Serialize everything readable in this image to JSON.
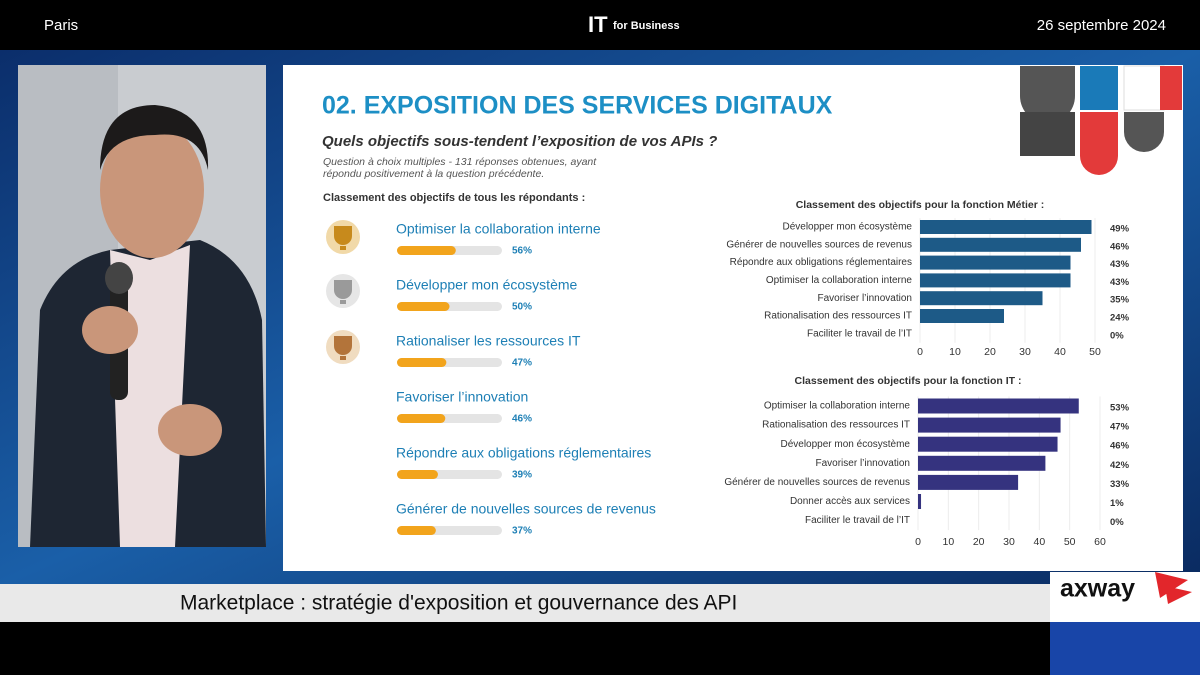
{
  "header": {
    "location": "Paris",
    "logo_main": "IT",
    "logo_sub": "for Business",
    "date": "26 septembre 2024"
  },
  "slide": {
    "title": "02. EXPOSITION DES SERVICES DIGITAUX",
    "question": "Quels objectifs sous-tendent l’exposition de vos APIs ?",
    "note_line1": "Question à choix multiples - 131 réponses obtenues, ayant",
    "note_line2": "répondu positivement à la question précédente."
  },
  "chart_data": [
    {
      "type": "progress",
      "title": "Classement des objectifs de tous les répondants :",
      "categories": [
        "Optimiser la collaboration interne",
        "Développer mon écosystème",
        "Rationaliser les ressources IT",
        "Favoriser l’innovation",
        "Répondre aux obligations réglementaires",
        "Générer de nouvelles sources de revenus"
      ],
      "values": [
        56,
        50,
        47,
        46,
        39,
        37
      ],
      "value_labels": [
        "56%",
        "50%",
        "47%",
        "46%",
        "39%",
        "37%"
      ],
      "xlim": [
        0,
        100
      ],
      "color": "#f2a41c"
    },
    {
      "type": "hbar",
      "title": "Classement des objectifs pour la fonction Métier :",
      "categories": [
        "Développer mon écosystème",
        "Générer de nouvelles sources de revenus",
        "Répondre aux obligations réglementaires",
        "Optimiser la collaboration interne",
        "Favoriser l’innovation",
        "Rationalisation des ressources IT",
        "Faciliter le travail de l’IT"
      ],
      "values": [
        49,
        46,
        43,
        43,
        35,
        24,
        0
      ],
      "value_labels": [
        "49%",
        "46%",
        "43%",
        "43%",
        "35%",
        "24%",
        "0%"
      ],
      "xlim": [
        0,
        50
      ],
      "xticks": [
        0,
        10,
        20,
        30,
        40,
        50
      ],
      "color": "#1d5a87"
    },
    {
      "type": "hbar",
      "title": "Classement des objectifs pour la fonction IT  :",
      "categories": [
        "Optimiser la collaboration interne",
        "Rationalisation des ressources IT",
        "Développer mon écosystème",
        "Favoriser l’innovation",
        "Générer de nouvelles sources de revenus",
        "Donner accès aux services",
        "Faciliter le travail de l’IT"
      ],
      "values": [
        53,
        47,
        46,
        42,
        33,
        1,
        0
      ],
      "value_labels": [
        "53%",
        "47%",
        "46%",
        "42%",
        "33%",
        "1%",
        "0%"
      ],
      "xlim": [
        0,
        60
      ],
      "xticks": [
        0,
        10,
        20,
        30,
        40,
        50,
        60
      ],
      "color": "#35337f"
    }
  ],
  "footer": {
    "caption": "Marketplace : stratégie d'exposition et gouvernance des API",
    "brand": "axway"
  }
}
